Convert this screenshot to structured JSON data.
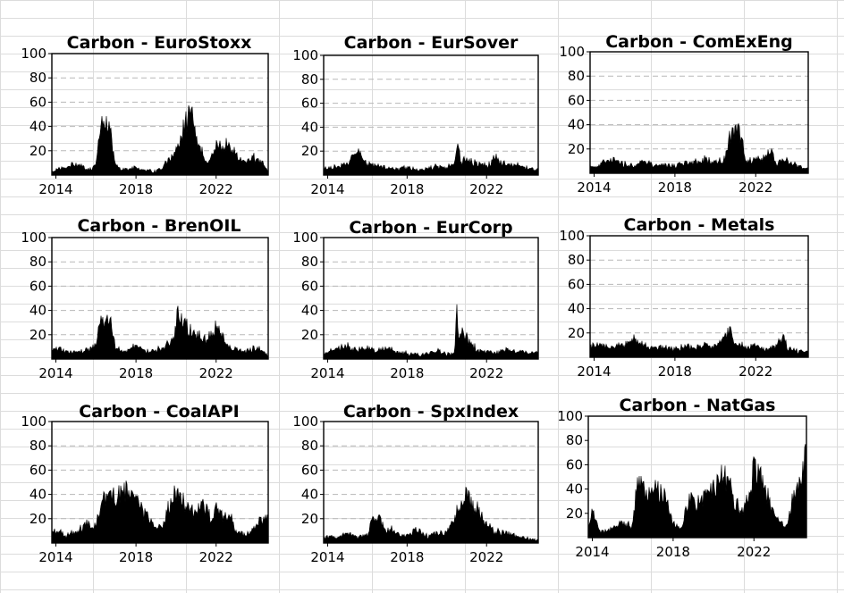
{
  "chart_data": [
    {
      "type": "area",
      "title": "Carbon - EuroStoxx",
      "x_ticks": [
        2014,
        2018,
        2022
      ],
      "y_ticks": [
        20,
        40,
        60,
        80,
        100
      ],
      "xlim": [
        2013.8,
        2024.6
      ],
      "ylim": [
        0,
        100
      ],
      "grid": "horizontal dashed",
      "x": [
        2013.8,
        2014.0,
        2014.5,
        2015.0,
        2015.5,
        2015.8,
        2016.0,
        2016.2,
        2016.4,
        2016.6,
        2016.8,
        2017.0,
        2017.2,
        2017.5,
        2018.0,
        2018.5,
        2019.0,
        2019.4,
        2019.7,
        2020.0,
        2020.2,
        2020.4,
        2020.6,
        2020.8,
        2021.0,
        2021.3,
        2021.6,
        2022.0,
        2022.3,
        2022.6,
        2022.9,
        2023.2,
        2023.5,
        2023.8,
        2024.1,
        2024.4,
        2024.6
      ],
      "y": [
        3,
        4,
        7,
        10,
        5,
        4,
        12,
        40,
        46,
        42,
        30,
        8,
        6,
        5,
        6,
        4,
        3,
        8,
        15,
        20,
        28,
        45,
        52,
        50,
        30,
        20,
        12,
        25,
        28,
        26,
        20,
        15,
        10,
        16,
        14,
        8,
        4
      ]
    },
    {
      "type": "area",
      "title": "Carbon - EurSover",
      "x_ticks": [
        2014,
        2018,
        2022
      ],
      "y_ticks": [
        20,
        40,
        60,
        80,
        100
      ],
      "xlim": [
        2013.8,
        2024.6
      ],
      "ylim": [
        0,
        100
      ],
      "grid": "horizontal dashed",
      "x": [
        2013.8,
        2014.0,
        2014.5,
        2015.0,
        2015.3,
        2015.6,
        2016.0,
        2016.5,
        2017.0,
        2017.5,
        2018.0,
        2018.5,
        2019.0,
        2019.5,
        2020.0,
        2020.4,
        2020.6,
        2020.7,
        2020.8,
        2021.0,
        2021.5,
        2022.0,
        2022.5,
        2023.0,
        2023.5,
        2024.0,
        2024.6
      ],
      "y": [
        5,
        6,
        8,
        10,
        20,
        22,
        10,
        8,
        6,
        5,
        7,
        4,
        6,
        8,
        7,
        10,
        33,
        10,
        12,
        14,
        10,
        8,
        16,
        8,
        10,
        6,
        5
      ]
    },
    {
      "type": "area",
      "title": "Carbon - ComExEng",
      "x_ticks": [
        2014,
        2018,
        2022
      ],
      "y_ticks": [
        20,
        40,
        60,
        80,
        100
      ],
      "xlim": [
        2013.8,
        2024.6
      ],
      "ylim": [
        0,
        100
      ],
      "grid": "horizontal dashed",
      "x": [
        2013.8,
        2014.0,
        2014.5,
        2015.0,
        2015.5,
        2016.0,
        2016.5,
        2017.0,
        2017.5,
        2018.0,
        2018.5,
        2019.0,
        2019.5,
        2020.0,
        2020.5,
        2020.7,
        2020.9,
        2021.1,
        2021.3,
        2021.5,
        2022.0,
        2022.5,
        2022.8,
        2023.0,
        2023.5,
        2024.0,
        2024.6
      ],
      "y": [
        4,
        6,
        10,
        12,
        8,
        6,
        10,
        7,
        8,
        6,
        10,
        9,
        12,
        10,
        14,
        34,
        37,
        36,
        33,
        10,
        12,
        15,
        20,
        8,
        12,
        7,
        4
      ]
    },
    {
      "type": "area",
      "title": "Carbon - BrenOIL",
      "x_ticks": [
        2014,
        2018,
        2022
      ],
      "y_ticks": [
        20,
        40,
        60,
        80,
        100
      ],
      "xlim": [
        2013.8,
        2024.6
      ],
      "ylim": [
        0,
        100
      ],
      "grid": "horizontal dashed",
      "x": [
        2013.8,
        2014.0,
        2014.5,
        2015.0,
        2015.5,
        2016.0,
        2016.2,
        2016.4,
        2016.7,
        2017.0,
        2017.5,
        2018.0,
        2018.5,
        2019.0,
        2019.5,
        2019.9,
        2020.1,
        2020.3,
        2020.6,
        2021.0,
        2021.5,
        2022.0,
        2022.3,
        2022.6,
        2023.0,
        2023.5,
        2024.0,
        2024.4,
        2024.6
      ],
      "y": [
        7,
        9,
        7,
        6,
        8,
        12,
        30,
        36,
        33,
        10,
        7,
        12,
        6,
        8,
        12,
        20,
        46,
        35,
        28,
        20,
        18,
        28,
        22,
        12,
        8,
        7,
        10,
        6,
        3
      ]
    },
    {
      "type": "area",
      "title": "Carbon - EurCorp",
      "x_ticks": [
        2014,
        2018,
        2022
      ],
      "y_ticks": [
        20,
        40,
        60,
        80,
        100
      ],
      "xlim": [
        2013.8,
        2024.6
      ],
      "ylim": [
        0,
        100
      ],
      "grid": "horizontal dashed",
      "x": [
        2013.8,
        2014.0,
        2014.5,
        2015.0,
        2015.5,
        2016.0,
        2016.5,
        2017.0,
        2017.5,
        2018.0,
        2018.5,
        2019.0,
        2019.5,
        2020.0,
        2020.4,
        2020.5,
        2020.6,
        2020.8,
        2021.0,
        2021.3,
        2021.6,
        2022.0,
        2022.5,
        2023.0,
        2023.5,
        2024.0,
        2024.6
      ],
      "y": [
        5,
        7,
        9,
        12,
        8,
        10,
        7,
        10,
        6,
        5,
        4,
        5,
        7,
        4,
        6,
        55,
        15,
        24,
        18,
        12,
        8,
        7,
        6,
        8,
        6,
        7,
        5
      ]
    },
    {
      "type": "area",
      "title": "Carbon - Metals",
      "x_ticks": [
        2014,
        2018,
        2022
      ],
      "y_ticks": [
        20,
        40,
        60,
        80,
        100
      ],
      "xlim": [
        2013.8,
        2024.6
      ],
      "ylim": [
        0,
        100
      ],
      "grid": "horizontal dashed",
      "x": [
        2013.8,
        2014.0,
        2014.5,
        2015.0,
        2015.5,
        2016.0,
        2016.5,
        2017.0,
        2017.5,
        2018.0,
        2018.5,
        2019.0,
        2019.5,
        2020.0,
        2020.4,
        2020.7,
        2021.0,
        2021.3,
        2021.6,
        2022.0,
        2022.5,
        2023.0,
        2023.4,
        2023.6,
        2024.0,
        2024.6
      ],
      "y": [
        8,
        12,
        10,
        9,
        11,
        16,
        10,
        8,
        9,
        7,
        10,
        8,
        12,
        10,
        16,
        25,
        12,
        10,
        8,
        11,
        7,
        10,
        18,
        8,
        6,
        4
      ]
    },
    {
      "type": "area",
      "title": "Carbon - CoalAPI",
      "x_ticks": [
        2014,
        2018,
        2022
      ],
      "y_ticks": [
        20,
        40,
        60,
        80,
        100
      ],
      "xlim": [
        2013.8,
        2024.6
      ],
      "ylim": [
        0,
        100
      ],
      "grid": "horizontal dashed",
      "x": [
        2013.8,
        2014.0,
        2014.5,
        2015.0,
        2015.5,
        2016.0,
        2016.3,
        2016.8,
        2017.2,
        2017.6,
        2018.0,
        2018.5,
        2019.0,
        2019.4,
        2019.8,
        2020.2,
        2020.6,
        2021.0,
        2021.4,
        2021.8,
        2022.0,
        2022.4,
        2022.8,
        2023.0,
        2023.5,
        2024.0,
        2024.4,
        2024.6
      ],
      "y": [
        10,
        12,
        6,
        10,
        16,
        14,
        35,
        42,
        45,
        46,
        35,
        25,
        12,
        18,
        42,
        46,
        30,
        25,
        35,
        18,
        30,
        24,
        20,
        10,
        6,
        15,
        22,
        20
      ]
    },
    {
      "type": "area",
      "title": "Carbon - SpxIndex",
      "x_ticks": [
        2014,
        2018,
        2022
      ],
      "y_ticks": [
        20,
        40,
        60,
        80,
        100
      ],
      "xlim": [
        2013.8,
        2024.6
      ],
      "ylim": [
        0,
        100
      ],
      "grid": "horizontal dashed",
      "x": [
        2013.8,
        2014.0,
        2014.5,
        2015.0,
        2015.5,
        2016.0,
        2016.3,
        2016.6,
        2016.9,
        2017.2,
        2017.5,
        2018.0,
        2018.5,
        2019.0,
        2019.5,
        2020.0,
        2020.4,
        2020.7,
        2021.0,
        2021.3,
        2021.6,
        2022.0,
        2022.5,
        2023.0,
        2023.5,
        2024.0,
        2024.6
      ],
      "y": [
        4,
        6,
        5,
        8,
        6,
        7,
        22,
        25,
        10,
        12,
        8,
        6,
        12,
        6,
        8,
        10,
        22,
        38,
        42,
        35,
        28,
        16,
        10,
        8,
        6,
        4,
        3
      ]
    },
    {
      "type": "area",
      "title": "Carbon - NatGas",
      "x_ticks": [
        2014,
        2018,
        2022
      ],
      "y_ticks": [
        20,
        40,
        60,
        80,
        100
      ],
      "xlim": [
        2013.8,
        2024.6
      ],
      "ylim": [
        0,
        100
      ],
      "grid": "none",
      "x": [
        2013.8,
        2014.0,
        2014.3,
        2014.6,
        2015.0,
        2015.5,
        2016.0,
        2016.2,
        2016.5,
        2016.8,
        2017.2,
        2017.6,
        2018.0,
        2018.4,
        2018.8,
        2019.2,
        2019.6,
        2020.0,
        2020.4,
        2020.8,
        2021.0,
        2021.4,
        2021.8,
        2022.0,
        2022.4,
        2022.8,
        2023.0,
        2023.3,
        2023.6,
        2023.9,
        2024.2,
        2024.6
      ],
      "y": [
        12,
        22,
        8,
        5,
        8,
        12,
        10,
        45,
        48,
        40,
        42,
        38,
        12,
        8,
        35,
        30,
        38,
        45,
        55,
        48,
        32,
        25,
        40,
        62,
        55,
        30,
        20,
        15,
        8,
        32,
        45,
        72
      ]
    }
  ]
}
